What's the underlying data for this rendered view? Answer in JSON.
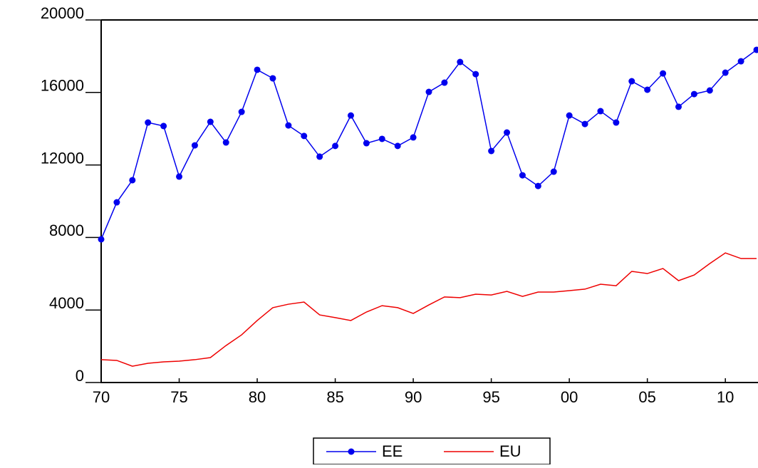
{
  "chart_data": {
    "type": "line",
    "x": [
      1970,
      1971,
      1972,
      1973,
      1974,
      1975,
      1976,
      1977,
      1978,
      1979,
      1980,
      1981,
      1982,
      1983,
      1984,
      1985,
      1986,
      1987,
      1988,
      1989,
      1990,
      1991,
      1992,
      1993,
      1994,
      1995,
      1996,
      1997,
      1998,
      1999,
      2000,
      2001,
      2002,
      2003,
      2004,
      2005,
      2006,
      2007,
      2008,
      2009,
      2010,
      2011,
      2012
    ],
    "series": [
      {
        "name": "EE",
        "color": "#0000ee",
        "marker": true,
        "values": [
          7900,
          9940,
          11160,
          14340,
          14150,
          11360,
          13080,
          14380,
          13240,
          14930,
          17250,
          16780,
          14180,
          13600,
          12460,
          13050,
          14730,
          13200,
          13440,
          13050,
          13520,
          16030,
          16540,
          17680,
          17010,
          12770,
          13790,
          11430,
          10840,
          11630,
          14730,
          14260,
          14970,
          14340,
          16620,
          16150,
          17050,
          15210,
          15910,
          16110,
          17090,
          17720,
          18350
        ]
      },
      {
        "name": "EU",
        "color": "#ee0000",
        "marker": false,
        "values": [
          1260,
          1220,
          900,
          1060,
          1140,
          1180,
          1260,
          1375,
          2040,
          2630,
          3420,
          4130,
          4320,
          4440,
          3730,
          3580,
          3420,
          3890,
          4240,
          4130,
          3810,
          4280,
          4720,
          4680,
          4870,
          4830,
          5030,
          4750,
          4990,
          4990,
          5070,
          5150,
          5420,
          5340,
          6130,
          6010,
          6290,
          5620,
          5930,
          6560,
          7150,
          6840,
          6840
        ]
      }
    ],
    "xlim": [
      1970,
      2012
    ],
    "xticks": [
      {
        "value": 1970,
        "label": "70"
      },
      {
        "value": 1975,
        "label": "75"
      },
      {
        "value": 1980,
        "label": "80"
      },
      {
        "value": 1985,
        "label": "85"
      },
      {
        "value": 1990,
        "label": "90"
      },
      {
        "value": 1995,
        "label": "95"
      },
      {
        "value": 2000,
        "label": "00"
      },
      {
        "value": 2005,
        "label": "05"
      },
      {
        "value": 2010,
        "label": "10"
      }
    ],
    "ylim": [
      0,
      20000
    ],
    "yticks": [
      0,
      4000,
      8000,
      12000,
      16000,
      20000
    ],
    "grid": false,
    "legend": "bottom"
  }
}
